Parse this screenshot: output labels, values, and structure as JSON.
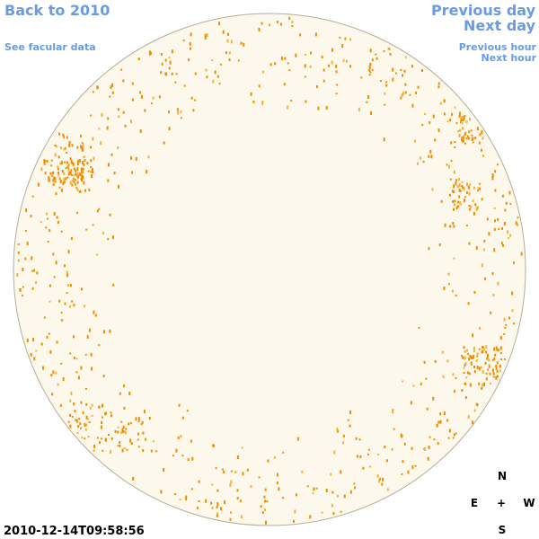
{
  "navigation": {
    "back": "Back to 2010",
    "facular": "See facular data",
    "previous_day": "Previous day",
    "next_day": "Next day",
    "previous_hour": "Previous hour",
    "next_hour": "Next hour"
  },
  "timestamp": "2010-12-14T09:58:56",
  "compass": {
    "north": "N",
    "east": "E",
    "center": "+",
    "west": "W",
    "south": "S"
  }
}
